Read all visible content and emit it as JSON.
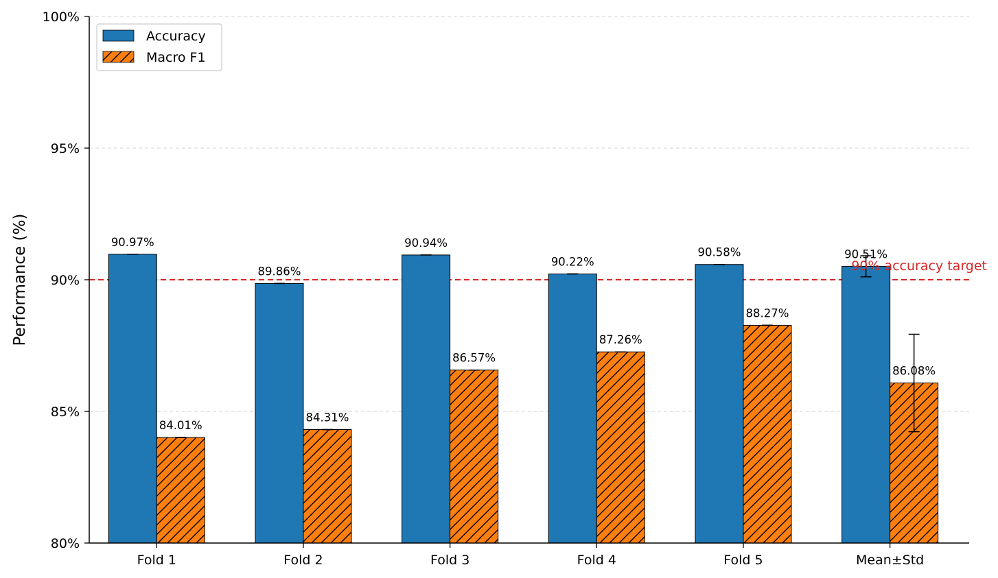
{
  "chart_data": {
    "type": "bar",
    "categories": [
      "Fold 1",
      "Fold 2",
      "Fold 3",
      "Fold 4",
      "Fold 5",
      "Mean±Std"
    ],
    "series": [
      {
        "name": "Accuracy",
        "values": [
          90.97,
          89.86,
          90.94,
          90.22,
          90.58,
          90.51
        ],
        "labels": [
          "90.97%",
          "89.86%",
          "90.94%",
          "90.22%",
          "90.58%",
          "90.51%"
        ],
        "errors": [
          0,
          0,
          0,
          0,
          0,
          0.4
        ],
        "color": "#1f77b4",
        "hatch": false
      },
      {
        "name": "Macro F1",
        "values": [
          84.01,
          84.31,
          86.57,
          87.26,
          88.27,
          86.08
        ],
        "labels": [
          "84.01%",
          "84.31%",
          "86.57%",
          "87.26%",
          "88.27%",
          "86.08%"
        ],
        "errors": [
          0,
          0,
          0,
          0,
          0,
          1.85
        ],
        "color": "#ff7f0e",
        "hatch": true
      }
    ],
    "ylabel": "Performance (%)",
    "xlabel": "",
    "ylim": [
      80,
      100
    ],
    "yticks": [
      80,
      85,
      90,
      95,
      100
    ],
    "ytick_labels": [
      "80%",
      "85%",
      "90%",
      "95%",
      "100%"
    ],
    "reference_line": {
      "value": 90,
      "label": "90% accuracy target",
      "color": "#d62728"
    },
    "grid": "y-dashed",
    "legend_position": "top-left"
  }
}
